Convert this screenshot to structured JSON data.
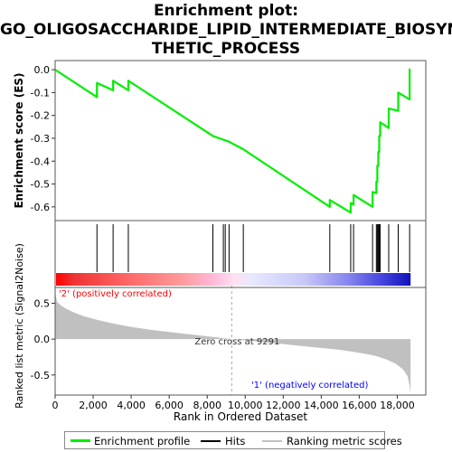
{
  "title_lines": [
    "Enrichment plot:",
    "GO_OLIGOSACCHARIDE_LIPID_INTERMEDIATE_BIOSYN",
    "THETIC_PROCESS"
  ],
  "colors": {
    "enrichment_line": "#00ee00",
    "hits": "#000000",
    "metric_fill": "#c0c0c0",
    "positive_label": "#ff0000",
    "negative_label": "#0000ff",
    "zero_cross_line": "#aaaaaa"
  },
  "chart_data": {
    "type": "line",
    "xlabel": "Rank in Ordered Dataset",
    "ylabel_top": "Enrichment score (ES)",
    "ylabel_bottom": "Ranked list metric (Signal2Noise)",
    "x_range": [
      0,
      19500
    ],
    "x_ticks": [
      0,
      2000,
      4000,
      6000,
      8000,
      10000,
      12000,
      14000,
      16000,
      18000
    ],
    "x_tick_labels": [
      "0",
      "2,000",
      "4,000",
      "6,000",
      "8,000",
      "10,000",
      "12,000",
      "14,000",
      "16,000",
      "18,000"
    ],
    "es_range": [
      -0.66,
      0.04
    ],
    "es_ticks": [
      0.0,
      -0.1,
      -0.2,
      -0.3,
      -0.4,
      -0.5,
      -0.6
    ],
    "es_tick_labels": [
      "0.0",
      "-0.1",
      "-0.2",
      "-0.3",
      "-0.4",
      "-0.5",
      "-0.6"
    ],
    "metric_range": [
      -0.78,
      0.72
    ],
    "metric_ticks": [
      0.5,
      0.0,
      -0.5
    ],
    "metric_tick_labels": [
      "0.5",
      "0.0",
      "-0.5"
    ],
    "total_ranks": 18700,
    "hits": [
      2200,
      3050,
      3850,
      8300,
      8850,
      8950,
      9150,
      9900,
      14450,
      15550,
      15700,
      16700,
      16900,
      16950,
      17000,
      17050,
      17100,
      17550,
      18050,
      18650
    ],
    "enrichment_profile": [
      [
        0,
        0.0
      ],
      [
        2200,
        -0.12
      ],
      [
        2200,
        -0.058
      ],
      [
        3050,
        -0.09
      ],
      [
        3050,
        -0.048
      ],
      [
        3850,
        -0.09
      ],
      [
        3850,
        -0.048
      ],
      [
        8300,
        -0.29
      ],
      [
        9150,
        -0.315
      ],
      [
        9900,
        -0.348
      ],
      [
        14450,
        -0.6
      ],
      [
        14450,
        -0.57
      ],
      [
        15550,
        -0.625
      ],
      [
        15550,
        -0.583
      ],
      [
        15700,
        -0.59
      ],
      [
        15700,
        -0.548
      ],
      [
        16700,
        -0.6
      ],
      [
        16700,
        -0.535
      ],
      [
        16900,
        -0.54
      ],
      [
        16900,
        -0.49
      ],
      [
        16950,
        -0.49
      ],
      [
        16950,
        -0.42
      ],
      [
        17000,
        -0.42
      ],
      [
        17000,
        -0.36
      ],
      [
        17050,
        -0.36
      ],
      [
        17050,
        -0.29
      ],
      [
        17100,
        -0.29
      ],
      [
        17100,
        -0.23
      ],
      [
        17550,
        -0.255
      ],
      [
        17550,
        -0.17
      ],
      [
        18050,
        -0.18
      ],
      [
        18050,
        -0.1
      ],
      [
        18650,
        -0.13
      ],
      [
        18650,
        0.005
      ]
    ],
    "metric_profile": [
      [
        0,
        0.65
      ],
      [
        100,
        0.52
      ],
      [
        300,
        0.47
      ],
      [
        600,
        0.42
      ],
      [
        1000,
        0.37
      ],
      [
        1500,
        0.32
      ],
      [
        2200,
        0.27
      ],
      [
        3000,
        0.22
      ],
      [
        4000,
        0.17
      ],
      [
        5000,
        0.13
      ],
      [
        6000,
        0.1
      ],
      [
        7000,
        0.07
      ],
      [
        8000,
        0.04
      ],
      [
        9291,
        0.0
      ],
      [
        10500,
        -0.03
      ],
      [
        12000,
        -0.07
      ],
      [
        13500,
        -0.11
      ],
      [
        15000,
        -0.15
      ],
      [
        16000,
        -0.19
      ],
      [
        16800,
        -0.23
      ],
      [
        17400,
        -0.28
      ],
      [
        17900,
        -0.34
      ],
      [
        18300,
        -0.42
      ],
      [
        18550,
        -0.52
      ],
      [
        18650,
        -0.65
      ],
      [
        18700,
        -0.75
      ]
    ],
    "zero_cross_rank": 9291,
    "zero_cross_label": "Zero cross at 9291",
    "positive_label": "'2' (positively correlated)",
    "negative_label": "'1' (negatively correlated)",
    "legend": [
      {
        "label": "Enrichment profile",
        "kind": "line",
        "color": "#00ee00"
      },
      {
        "label": "Hits",
        "kind": "line",
        "color": "#000000"
      },
      {
        "label": "Ranking metric scores",
        "kind": "line",
        "color": "#c0c0c0"
      }
    ]
  }
}
